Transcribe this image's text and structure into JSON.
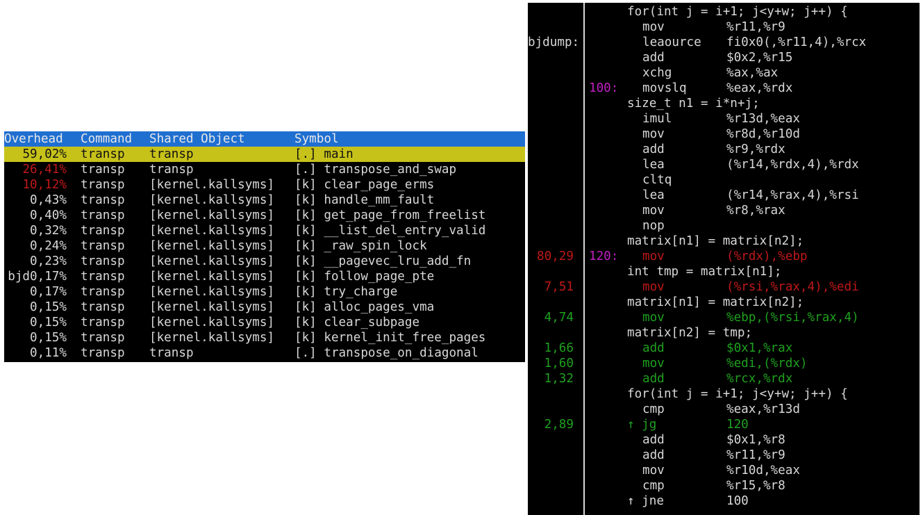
{
  "report": {
    "headers": {
      "overhead": "Overhead",
      "command": "Command",
      "shared_object": "Shared Object",
      "symbol": "Symbol"
    },
    "rows": [
      {
        "overhead": "59,02%",
        "command": "transp",
        "object": "transp",
        "symbol": "[.] main",
        "color": "#111111",
        "selected": true
      },
      {
        "overhead": "26,41%",
        "command": "transp",
        "object": "transp",
        "symbol": "[.] transpose_and_swap",
        "color": "#c01818",
        "selected": false
      },
      {
        "overhead": "10,12%",
        "command": "transp",
        "object": "[kernel.kallsyms]",
        "symbol": "[k] clear_page_erms",
        "color": "#c01818",
        "selected": false
      },
      {
        "overhead": "0,43%",
        "command": "transp",
        "object": "[kernel.kallsyms]",
        "symbol": "[k] handle_mm_fault",
        "color": "#d8d8d8",
        "selected": false
      },
      {
        "overhead": "0,40%",
        "command": "transp",
        "object": "[kernel.kallsyms]",
        "symbol": "[k] get_page_from_freelist",
        "color": "#d8d8d8",
        "selected": false
      },
      {
        "overhead": "0,32%",
        "command": "transp",
        "object": "[kernel.kallsyms]",
        "symbol": "[k] __list_del_entry_valid",
        "color": "#d8d8d8",
        "selected": false
      },
      {
        "overhead": "0,24%",
        "command": "transp",
        "object": "[kernel.kallsyms]",
        "symbol": "[k] _raw_spin_lock",
        "color": "#d8d8d8",
        "selected": false
      },
      {
        "overhead": "0,23%",
        "command": "transp",
        "object": "[kernel.kallsyms]",
        "symbol": "[k] __pagevec_lru_add_fn",
        "color": "#d8d8d8",
        "selected": false
      },
      {
        "overhead": "bjd0,17%",
        "command": "transp",
        "object": "[kernel.kallsyms]",
        "symbol": "[k] follow_page_pte",
        "color": "#d8d8d8",
        "selected": false
      },
      {
        "overhead": "0,17%",
        "command": "transp",
        "object": "[kernel.kallsyms]",
        "symbol": "[k] try_charge",
        "color": "#d8d8d8",
        "selected": false
      },
      {
        "overhead": "0,15%",
        "command": "transp",
        "object": "[kernel.kallsyms]",
        "symbol": "[k] alloc_pages_vma",
        "color": "#d8d8d8",
        "selected": false
      },
      {
        "overhead": "0,15%",
        "command": "transp",
        "object": "[kernel.kallsyms]",
        "symbol": "[k] clear_subpage",
        "color": "#d8d8d8",
        "selected": false
      },
      {
        "overhead": "0,15%",
        "command": "transp",
        "object": "[kernel.kallsyms]",
        "symbol": "[k] kernel_init_free_pages",
        "color": "#d8d8d8",
        "selected": false
      },
      {
        "overhead": "0,11%",
        "command": "transp",
        "object": "transp",
        "symbol": "[.] transpose_on_diagonal",
        "color": "#d8d8d8",
        "selected": false
      }
    ]
  },
  "annotate": {
    "lines": [
      {
        "kind": "src",
        "text": "for(int j = i+1; j<y+w; j++) {"
      },
      {
        "kind": "asm",
        "mnem": "mov",
        "ops": "%r11,%r9"
      },
      {
        "kind": "asm",
        "label": "bjdump:",
        "mnem": "leaource",
        "ops": "fi0x0(,%r11,4),%rcx"
      },
      {
        "kind": "asm",
        "mnem": "add",
        "ops": "$0x2,%r15"
      },
      {
        "kind": "asm",
        "mnem": "xchg",
        "ops": "%ax,%ax"
      },
      {
        "kind": "asm",
        "addr": "100:",
        "mnem": "movslq",
        "ops": "%eax,%rdx"
      },
      {
        "kind": "src",
        "text": "size_t n1 = i*n+j;"
      },
      {
        "kind": "asm",
        "mnem": "imul",
        "ops": "%r13d,%eax"
      },
      {
        "kind": "asm",
        "mnem": "mov",
        "ops": "%r8d,%r10d"
      },
      {
        "kind": "asm",
        "mnem": "add",
        "ops": "%r9,%rdx"
      },
      {
        "kind": "asm",
        "mnem": "lea",
        "ops": "(%r14,%rdx,4),%rdx"
      },
      {
        "kind": "asm",
        "mnem": "cltq",
        "ops": ""
      },
      {
        "kind": "asm",
        "mnem": "lea",
        "ops": "(%r14,%rax,4),%rsi"
      },
      {
        "kind": "asm",
        "mnem": "mov",
        "ops": "%r8,%rax"
      },
      {
        "kind": "asm",
        "mnem": "nop",
        "ops": ""
      },
      {
        "kind": "src",
        "text": "matrix[n1] = matrix[n2];"
      },
      {
        "kind": "asm",
        "pct": "80,29",
        "addr": "120:",
        "mnem": "mov",
        "ops": "(%rdx),%ebp",
        "color": "#c01818"
      },
      {
        "kind": "src",
        "text": "int tmp = matrix[n1];"
      },
      {
        "kind": "asm",
        "pct": "7,51",
        "mnem": "mov",
        "ops": "(%rsi,%rax,4),%edi",
        "color": "#c01818"
      },
      {
        "kind": "src",
        "text": "matrix[n1] = matrix[n2];"
      },
      {
        "kind": "asm",
        "pct": "4,74",
        "mnem": "mov",
        "ops": "%ebp,(%rsi,%rax,4)",
        "color": "#1fa01f"
      },
      {
        "kind": "src",
        "text": "matrix[n2] = tmp;"
      },
      {
        "kind": "asm",
        "pct": "1,66",
        "mnem": "add",
        "ops": "$0x1,%rax",
        "color": "#1fa01f"
      },
      {
        "kind": "asm",
        "pct": "1,60",
        "mnem": "mov",
        "ops": "%edi,(%rdx)",
        "color": "#1fa01f"
      },
      {
        "kind": "asm",
        "pct": "1,32",
        "mnem": "add",
        "ops": "%rcx,%rdx",
        "color": "#1fa01f"
      },
      {
        "kind": "src",
        "text": "for(int j = i+1; j<y+w; j++) {"
      },
      {
        "kind": "asm",
        "mnem": "cmp",
        "ops": "%eax,%r13d"
      },
      {
        "kind": "asm",
        "pct": "2,89",
        "mnem": "↑ jg",
        "ops": "120",
        "color": "#1fa01f",
        "arrow": true
      },
      {
        "kind": "asm",
        "mnem": "add",
        "ops": "$0x1,%r8"
      },
      {
        "kind": "asm",
        "mnem": "add",
        "ops": "%r11,%r9"
      },
      {
        "kind": "asm",
        "mnem": "mov",
        "ops": "%r10d,%eax"
      },
      {
        "kind": "asm",
        "mnem": "cmp",
        "ops": "%r15,%r8"
      },
      {
        "kind": "asm",
        "mnem": "↑ jne",
        "ops": "100",
        "arrow": true
      }
    ]
  },
  "colors": {
    "header_bg": "#1f6fd1",
    "selected_bg": "#c7c21a",
    "hot": "#c01818",
    "warm": "#1fa01f",
    "address": "#c020c0"
  }
}
